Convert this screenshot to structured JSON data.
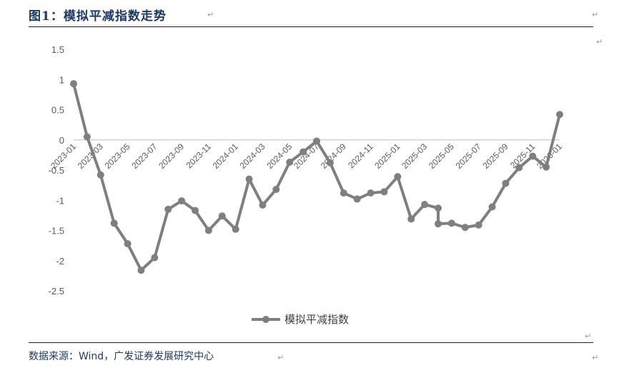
{
  "figure_title": "图1：模拟平减指数走势",
  "source_text": "数据来源：Wind，广发证券发展研究中心",
  "chart_data": {
    "type": "line",
    "title": "",
    "xlabel": "",
    "ylabel": "",
    "ylim": [
      -2.5,
      1.5
    ],
    "yticks": [
      "1.5",
      "1",
      "0.5",
      "0",
      "-0.5",
      "-1",
      "-1.5",
      "-2",
      "-2.5"
    ],
    "x_tick_labels": [
      "2023-01",
      "2023-03",
      "2023-05",
      "2023-07",
      "2023-09",
      "2023-11",
      "2024-01",
      "2024-03",
      "2024-05",
      "2024-07",
      "2024-09",
      "2024-11",
      "2025-01",
      "2025-03",
      "2025-05",
      "2025-07",
      "2025-09",
      "2025-11",
      "2026-01"
    ],
    "legend_position": "bottom",
    "grid": false,
    "line_color": "#7f7f7f",
    "series": [
      {
        "name": "模拟平减指数",
        "points": [
          {
            "x": "2023-01",
            "y": 0.93
          },
          {
            "x": "2023-02",
            "y": 0.05
          },
          {
            "x": "2023-03",
            "y": -0.58
          },
          {
            "x": "2023-04",
            "y": -1.38
          },
          {
            "x": "2023-05",
            "y": -1.72
          },
          {
            "x": "2023-06",
            "y": -2.16
          },
          {
            "x": "2023-07",
            "y": -1.95
          },
          {
            "x": "2023-08",
            "y": -1.15
          },
          {
            "x": "2023-09",
            "y": -1.01
          },
          {
            "x": "2023-10",
            "y": -1.17
          },
          {
            "x": "2023-11",
            "y": -1.5
          },
          {
            "x": "2023-12",
            "y": -1.26
          },
          {
            "x": "2024-01",
            "y": -1.48
          },
          {
            "x": "2024-02",
            "y": -0.65
          },
          {
            "x": "2024-03",
            "y": -1.08
          },
          {
            "x": "2024-04",
            "y": -0.82
          },
          {
            "x": "2024-05",
            "y": -0.37
          },
          {
            "x": "2024-06",
            "y": -0.2
          },
          {
            "x": "2024-07",
            "y": -0.02
          },
          {
            "x": "2024-08",
            "y": -0.38
          },
          {
            "x": "2024-09",
            "y": -0.88
          },
          {
            "x": "2024-10",
            "y": -0.98
          },
          {
            "x": "2024-11",
            "y": -0.88
          },
          {
            "x": "2024-12",
            "y": -0.86
          },
          {
            "x": "2025-01",
            "y": -0.61
          },
          {
            "x": "2025-02",
            "y": -1.31
          },
          {
            "x": "2025-03",
            "y": -1.07
          },
          {
            "x": "2025-04",
            "y": -1.13
          },
          {
            "x": "2025-04",
            "y": -1.39
          },
          {
            "x": "2025-05",
            "y": -1.38
          },
          {
            "x": "2025-06",
            "y": -1.45
          },
          {
            "x": "2025-07",
            "y": -1.41
          },
          {
            "x": "2025-08",
            "y": -1.11
          },
          {
            "x": "2025-09",
            "y": -0.72
          },
          {
            "x": "2025-10",
            "y": -0.46
          },
          {
            "x": "2025-11",
            "y": -0.27
          },
          {
            "x": "2025-12",
            "y": -0.45
          },
          {
            "x": "2026-01",
            "y": 0.42
          }
        ]
      }
    ]
  }
}
